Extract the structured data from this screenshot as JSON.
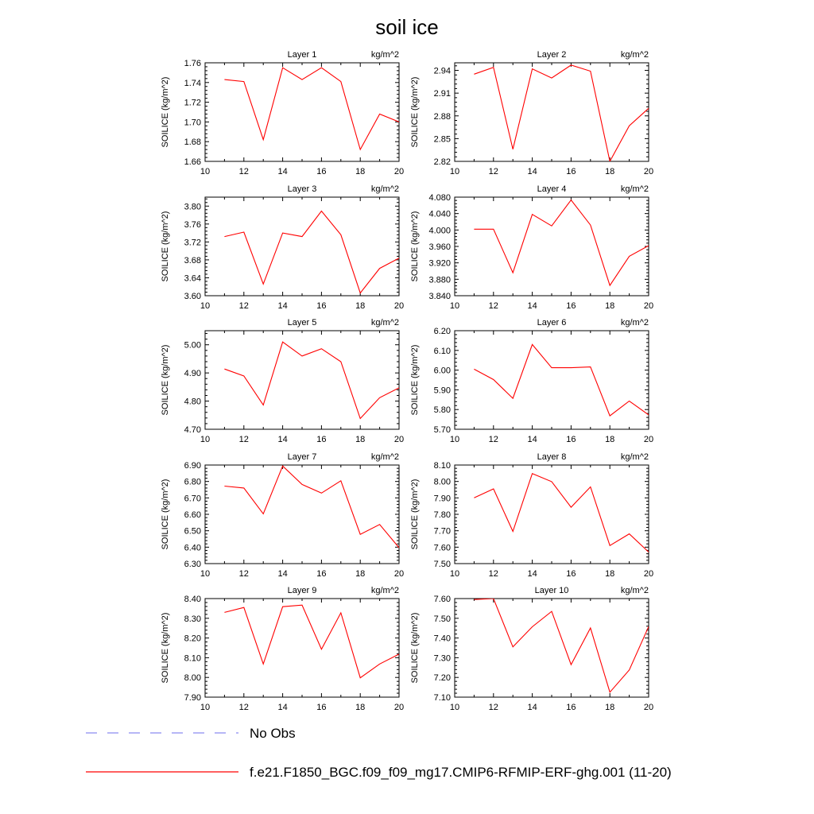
{
  "title": "soil ice",
  "legend": {
    "placement": "bottom",
    "entries": [
      {
        "label": "No Obs",
        "color": "#8a8af0",
        "dash": true
      },
      {
        "label": "f.e21.F1850_BGC.f09_f09_mg17.CMIP6-RFMIP-ERF-ghg.001 (11-20)",
        "color": "#ff0000",
        "dash": false
      }
    ]
  },
  "chart_data": [
    {
      "type": "line",
      "title": "Layer 1",
      "units": "kg/m^2",
      "ylabel": "SOILICE  (kg/m^2)",
      "xlim": [
        10,
        20
      ],
      "ylim": [
        1.66,
        1.76
      ],
      "xticks": [
        "10",
        "12",
        "14",
        "16",
        "18",
        "20"
      ],
      "yticks": [
        "1.66",
        "1.68",
        "1.70",
        "1.72",
        "1.74",
        "1.76"
      ],
      "x": [
        11,
        12,
        13,
        14,
        15,
        16,
        17,
        18,
        19,
        20
      ],
      "y": [
        1.743,
        1.741,
        1.682,
        1.755,
        1.743,
        1.755,
        1.741,
        1.672,
        1.708,
        1.7
      ],
      "color": "#ff0000"
    },
    {
      "type": "line",
      "title": "Layer 2",
      "units": "kg/m^2",
      "ylabel": "SOILICE  (kg/m^2)",
      "xlim": [
        10,
        20
      ],
      "ylim": [
        2.82,
        2.95
      ],
      "xticks": [
        "10",
        "12",
        "14",
        "16",
        "18",
        "20"
      ],
      "yticks": [
        "2.82",
        "2.85",
        "2.88",
        "2.91",
        "2.94"
      ],
      "x": [
        11,
        12,
        13,
        14,
        15,
        16,
        17,
        18,
        19,
        20
      ],
      "y": [
        2.935,
        2.944,
        2.836,
        2.942,
        2.93,
        2.947,
        2.939,
        2.82,
        2.867,
        2.89
      ],
      "color": "#ff0000"
    },
    {
      "type": "line",
      "title": "Layer 3",
      "units": "kg/m^2",
      "ylabel": "SOILICE  (kg/m^2)",
      "xlim": [
        10,
        20
      ],
      "ylim": [
        3.6,
        3.82
      ],
      "xticks": [
        "10",
        "12",
        "14",
        "16",
        "18",
        "20"
      ],
      "yticks": [
        "3.60",
        "3.64",
        "3.68",
        "3.72",
        "3.76",
        "3.80"
      ],
      "x": [
        11,
        12,
        13,
        14,
        15,
        16,
        17,
        18,
        19,
        20
      ],
      "y": [
        3.732,
        3.742,
        3.626,
        3.74,
        3.732,
        3.789,
        3.736,
        3.606,
        3.661,
        3.684
      ],
      "color": "#ff0000"
    },
    {
      "type": "line",
      "title": "Layer 4",
      "units": "kg/m^2",
      "ylabel": "SOILICE  (kg/m^2)",
      "xlim": [
        10,
        20
      ],
      "ylim": [
        3.84,
        4.08
      ],
      "xticks": [
        "10",
        "12",
        "14",
        "16",
        "18",
        "20"
      ],
      "yticks": [
        "3.840",
        "3.880",
        "3.920",
        "3.960",
        "4.000",
        "4.040",
        "4.080"
      ],
      "x": [
        11,
        12,
        13,
        14,
        15,
        16,
        17,
        18,
        19,
        20
      ],
      "y": [
        4.002,
        4.002,
        3.896,
        4.038,
        4.01,
        4.073,
        4.012,
        3.865,
        3.936,
        3.962
      ],
      "color": "#ff0000"
    },
    {
      "type": "line",
      "title": "Layer 5",
      "units": "kg/m^2",
      "ylabel": "SOILICE  (kg/m^2)",
      "xlim": [
        10,
        20
      ],
      "ylim": [
        4.7,
        5.05
      ],
      "xticks": [
        "10",
        "12",
        "14",
        "16",
        "18",
        "20"
      ],
      "yticks": [
        "4.70",
        "4.80",
        "4.90",
        "5.00"
      ],
      "x": [
        11,
        12,
        13,
        14,
        15,
        16,
        17,
        18,
        19,
        20
      ],
      "y": [
        4.914,
        4.889,
        4.786,
        5.01,
        4.96,
        4.986,
        4.94,
        4.738,
        4.812,
        4.847
      ],
      "color": "#ff0000"
    },
    {
      "type": "line",
      "title": "Layer 6",
      "units": "kg/m^2",
      "ylabel": "SOILICE  (kg/m^2)",
      "xlim": [
        10,
        20
      ],
      "ylim": [
        5.7,
        6.2
      ],
      "xticks": [
        "10",
        "12",
        "14",
        "16",
        "18",
        "20"
      ],
      "yticks": [
        "5.70",
        "5.80",
        "5.90",
        "6.00",
        "6.10",
        "6.20"
      ],
      "x": [
        11,
        12,
        13,
        14,
        15,
        16,
        17,
        18,
        19,
        20
      ],
      "y": [
        6.005,
        5.952,
        5.857,
        6.13,
        6.012,
        6.012,
        6.016,
        5.768,
        5.843,
        5.773
      ],
      "color": "#ff0000"
    },
    {
      "type": "line",
      "title": "Layer 7",
      "units": "kg/m^2",
      "ylabel": "SOILICE  (kg/m^2)",
      "xlim": [
        10,
        20
      ],
      "ylim": [
        6.3,
        6.9
      ],
      "xticks": [
        "10",
        "12",
        "14",
        "16",
        "18",
        "20"
      ],
      "yticks": [
        "6.30",
        "6.40",
        "6.50",
        "6.60",
        "6.70",
        "6.80",
        "6.90"
      ],
      "x": [
        11,
        12,
        13,
        14,
        15,
        16,
        17,
        18,
        19,
        20
      ],
      "y": [
        6.772,
        6.76,
        6.603,
        6.894,
        6.782,
        6.729,
        6.804,
        6.478,
        6.538,
        6.397
      ],
      "color": "#ff0000"
    },
    {
      "type": "line",
      "title": "Layer 8",
      "units": "kg/m^2",
      "ylabel": "SOILICE  (kg/m^2)",
      "xlim": [
        10,
        20
      ],
      "ylim": [
        7.5,
        8.1
      ],
      "xticks": [
        "10",
        "12",
        "14",
        "16",
        "18",
        "20"
      ],
      "yticks": [
        "7.50",
        "7.60",
        "7.70",
        "7.80",
        "7.90",
        "8.00",
        "8.10"
      ],
      "x": [
        11,
        12,
        13,
        14,
        15,
        16,
        17,
        18,
        19,
        20
      ],
      "y": [
        7.9,
        7.955,
        7.696,
        8.048,
        7.999,
        7.843,
        7.967,
        7.61,
        7.681,
        7.57
      ],
      "color": "#ff0000"
    },
    {
      "type": "line",
      "title": "Layer 9",
      "units": "kg/m^2",
      "ylabel": "SOILICE  (kg/m^2)",
      "xlim": [
        10,
        20
      ],
      "ylim": [
        7.9,
        8.4
      ],
      "xticks": [
        "10",
        "12",
        "14",
        "16",
        "18",
        "20"
      ],
      "yticks": [
        "7.90",
        "8.00",
        "8.10",
        "8.20",
        "8.30",
        "8.40"
      ],
      "x": [
        11,
        12,
        13,
        14,
        15,
        16,
        17,
        18,
        19,
        20
      ],
      "y": [
        8.33,
        8.355,
        8.068,
        8.359,
        8.367,
        8.143,
        8.328,
        7.998,
        8.068,
        8.118
      ],
      "color": "#ff0000"
    },
    {
      "type": "line",
      "title": "Layer 10",
      "units": "kg/m^2",
      "ylabel": "SOILICE  (kg/m^2)",
      "xlim": [
        10,
        20
      ],
      "ylim": [
        7.1,
        7.6
      ],
      "xticks": [
        "10",
        "12",
        "14",
        "16",
        "18",
        "20"
      ],
      "yticks": [
        "7.10",
        "7.20",
        "7.30",
        "7.40",
        "7.50",
        "7.60"
      ],
      "x": [
        11,
        12,
        13,
        14,
        15,
        16,
        17,
        18,
        19,
        20
      ],
      "y": [
        7.595,
        7.6,
        7.355,
        7.457,
        7.535,
        7.265,
        7.451,
        7.125,
        7.238,
        7.458
      ],
      "color": "#ff0000"
    }
  ]
}
